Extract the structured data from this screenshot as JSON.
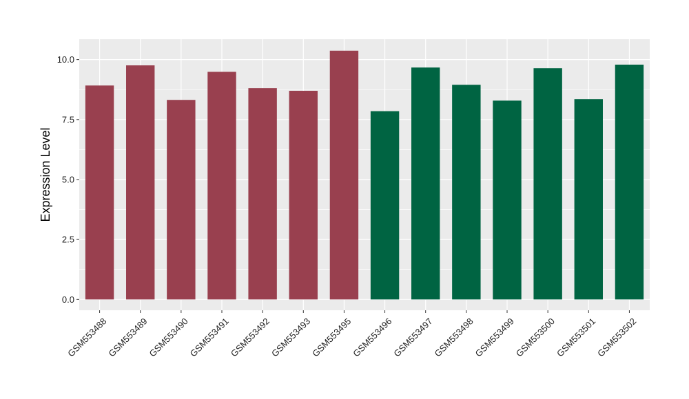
{
  "chart_data": {
    "type": "bar",
    "title": "",
    "xlabel": "",
    "ylabel": "Expression Level",
    "ylim": [
      -0.45,
      10.85
    ],
    "yticks": [
      0.0,
      2.5,
      5.0,
      7.5,
      10.0
    ],
    "ytick_labels": [
      "0.0",
      "2.5",
      "5.0",
      "7.5",
      "10.0"
    ],
    "grid": true,
    "legend": "none",
    "panel_background": "#ebebeb",
    "gridline_color": "#ffffff",
    "categories": [
      "GSM553488",
      "GSM553489",
      "GSM553490",
      "GSM553491",
      "GSM553492",
      "GSM553493",
      "GSM553495",
      "GSM553496",
      "GSM553497",
      "GSM553498",
      "GSM553499",
      "GSM553500",
      "GSM553501",
      "GSM553502"
    ],
    "values": [
      8.92,
      9.76,
      8.32,
      9.49,
      8.81,
      8.7,
      10.37,
      7.85,
      9.67,
      8.95,
      8.29,
      9.64,
      8.35,
      9.79
    ],
    "colors": [
      "#99404f",
      "#99404f",
      "#99404f",
      "#99404f",
      "#99404f",
      "#99404f",
      "#99404f",
      "#006442",
      "#006442",
      "#006442",
      "#006442",
      "#006442",
      "#006442",
      "#006442"
    ]
  }
}
